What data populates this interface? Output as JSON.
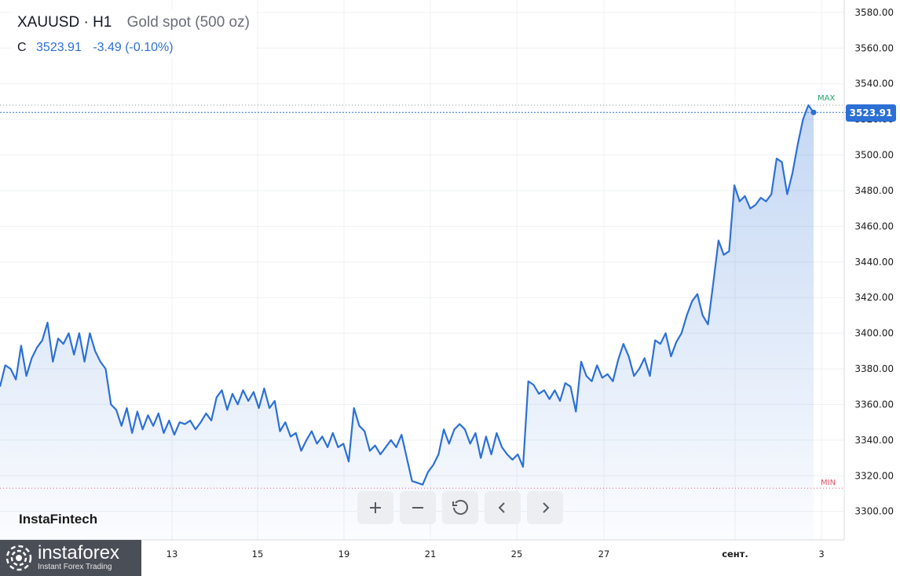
{
  "header": {
    "symbol": "XAUUSD · H1",
    "description": "Gold spot (500 oz)",
    "close_label": "C",
    "close_value": "3523.91",
    "change": "-3.49 (-0.10%)"
  },
  "price_tag": "3523.91",
  "markers": {
    "max": "MAX",
    "min": "MIN"
  },
  "brand": "InstaFintech",
  "logo": {
    "name": "instaforex",
    "tagline": "Instant Forex Trading"
  },
  "toolbar": {
    "icons": [
      "plus-icon",
      "minus-icon",
      "reset-icon",
      "chevron-left-icon",
      "chevron-right-icon"
    ]
  },
  "colors": {
    "line": "#2c70d6",
    "max": "#22a36b",
    "min": "#e0536a"
  },
  "chart_data": {
    "type": "area",
    "ylim": [
      3284,
      3587
    ],
    "y_ticks": [
      "3580.00",
      "3560.00",
      "3540.00",
      "3520.00",
      "3500.00",
      "3480.00",
      "3460.00",
      "3440.00",
      "3420.00",
      "3400.00",
      "3380.00",
      "3360.00",
      "3340.00",
      "3320.00",
      "3300.00"
    ],
    "x_ticks": [
      "13",
      "15",
      "19",
      "21",
      "25",
      "27",
      "сент.",
      "3"
    ],
    "max_value": 3528,
    "min_value": 3313,
    "last_value": 3523.91,
    "series": [
      {
        "values": [
          3370,
          3382,
          3380,
          3374,
          3393,
          3376,
          3386,
          3392,
          3396,
          3406,
          3384,
          3397,
          3394,
          3400,
          3388,
          3400,
          3384,
          3400,
          3390,
          3384,
          3380,
          3360,
          3357,
          3348,
          3358,
          3344,
          3356,
          3346,
          3354,
          3348,
          3355,
          3344,
          3351,
          3343,
          3350,
          3349,
          3351,
          3346,
          3350,
          3355,
          3351,
          3364,
          3368,
          3357,
          3366,
          3360,
          3368,
          3362,
          3367,
          3358,
          3369,
          3358,
          3362,
          3345,
          3350,
          3342,
          3344,
          3334,
          3340,
          3345,
          3338,
          3342,
          3336,
          3344,
          3336,
          3338,
          3328,
          3358,
          3348,
          3345,
          3334,
          3337,
          3332,
          3336,
          3340,
          3336,
          3343,
          3330,
          3317,
          3316,
          3315,
          3322,
          3326,
          3332,
          3346,
          3338,
          3346,
          3349,
          3346,
          3338,
          3344,
          3330,
          3342,
          3332,
          3344,
          3336,
          3332,
          3329,
          3332,
          3325,
          3373,
          3371,
          3366,
          3368,
          3363,
          3368,
          3362,
          3372,
          3370,
          3356,
          3384,
          3376,
          3373,
          3382,
          3375,
          3377,
          3373,
          3385,
          3394,
          3387,
          3376,
          3380,
          3386,
          3376,
          3396,
          3394,
          3400,
          3387,
          3395,
          3400,
          3410,
          3418,
          3422,
          3410,
          3405,
          3428,
          3452,
          3444,
          3446,
          3483,
          3474,
          3477,
          3470,
          3472,
          3476,
          3474,
          3478,
          3498,
          3496,
          3478,
          3490,
          3506,
          3520,
          3528,
          3523.91
        ]
      }
    ]
  }
}
